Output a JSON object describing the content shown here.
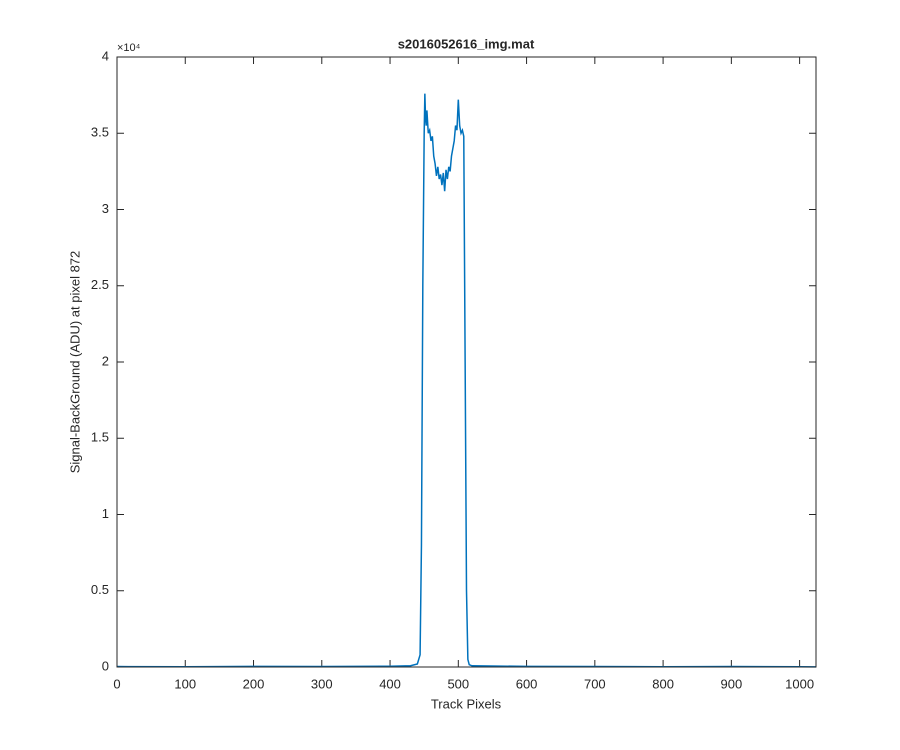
{
  "chart_data": {
    "type": "line",
    "title": "s2016052616_img.mat",
    "x_label": "Track Pixels",
    "y_label": "Signal-BackGround (ADU) at pixel 872",
    "y_exponent_label": "×10⁴",
    "x": [
      0,
      100,
      200,
      300,
      400,
      430,
      440,
      444,
      446,
      448,
      450,
      451,
      452,
      453,
      454,
      456,
      458,
      460,
      462,
      464,
      466,
      468,
      470,
      472,
      474,
      476,
      478,
      480,
      482,
      484,
      486,
      488,
      490,
      492,
      494,
      496,
      498,
      500,
      502,
      504,
      506,
      508,
      510,
      512,
      514,
      516,
      520,
      600,
      700,
      800,
      900,
      1000,
      1024
    ],
    "series": [
      {
        "color": "#0072bd",
        "values": [
          30,
          20,
          40,
          30,
          50,
          80,
          200,
          800,
          8000,
          25000,
          35000,
          37600,
          36000,
          35500,
          36500,
          35000,
          35200,
          34500,
          34800,
          33500,
          33000,
          32200,
          32800,
          32000,
          32300,
          31600,
          32400,
          31200,
          32600,
          32000,
          32800,
          32500,
          33500,
          34000,
          34500,
          35500,
          35200,
          37200,
          35500,
          35000,
          35200,
          34800,
          20000,
          5000,
          500,
          150,
          80,
          40,
          30,
          20,
          30,
          20,
          10
        ]
      }
    ],
    "xlim": [
      0,
      1024
    ],
    "xticks": [
      0,
      100,
      200,
      300,
      400,
      500,
      600,
      700,
      800,
      900,
      1000
    ],
    "ylim": [
      0,
      40000
    ],
    "yticks": [
      0,
      {
        "value": 5000,
        "label": "0.5"
      },
      {
        "value": 10000,
        "label": "1"
      },
      {
        "value": 15000,
        "label": "1.5"
      },
      {
        "value": 20000,
        "label": "2"
      },
      {
        "value": 25000,
        "label": "2.5"
      },
      {
        "value": 30000,
        "label": "3"
      },
      {
        "value": 35000,
        "label": "3.5"
      },
      {
        "value": 40000,
        "label": "4"
      }
    ],
    "grid": false
  }
}
